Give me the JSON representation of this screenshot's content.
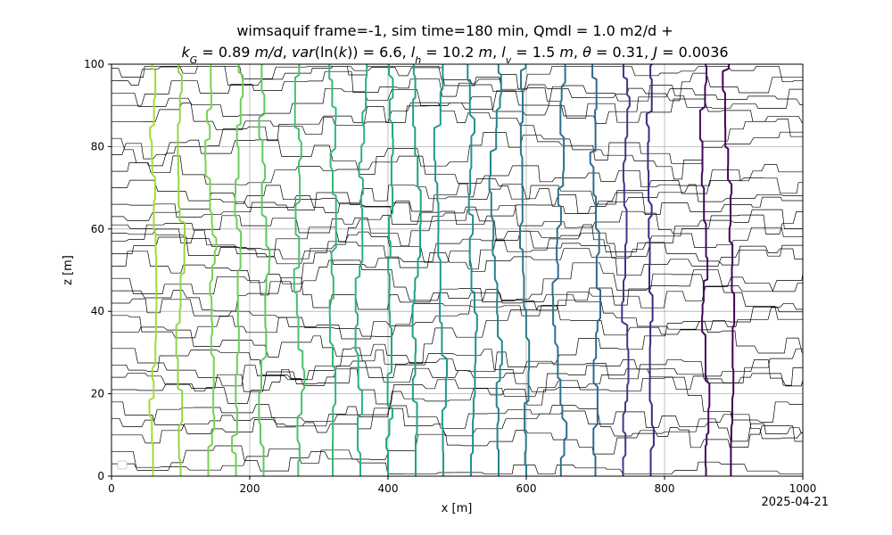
{
  "chart_data": {
    "type": "line",
    "title_line1": "wimsaquif frame=-1, sim time=180 min, Qmdl = 1.0 m2/d +",
    "title_line2": "k_G = 0.89 m/d, var(ln(k)) = 6.6, l_h = 10.2 m, l_v = 1.5 m, θ = 0.31, J = 0.0036",
    "xlabel": "x [m]",
    "ylabel": "z [m]",
    "xlim": [
      0,
      1000
    ],
    "ylim": [
      0,
      100
    ],
    "xticks": [
      0,
      200,
      400,
      600,
      800,
      1000
    ],
    "yticks": [
      0,
      20,
      40,
      60,
      80,
      100
    ],
    "grid": true,
    "date_stamp": "2025-04-21",
    "colormap": "viridis",
    "head_contours_x": [
      896,
      860,
      780,
      740,
      700,
      650,
      600,
      560,
      520,
      480,
      440,
      400,
      360,
      320,
      270,
      220,
      180,
      140,
      100,
      60
    ],
    "head_contour_colors": [
      "#440154",
      "#46085c",
      "#3b2a84",
      "#3a3a8b",
      "#31688e",
      "#2e6f8e",
      "#2a788e",
      "#26828e",
      "#21918c",
      "#1f9a8a",
      "#1fa187",
      "#22a884",
      "#2db27d",
      "#35b779",
      "#4ac16d",
      "#5ec962",
      "#6ece58",
      "#7ad151",
      "#8fd744",
      "#a5db36"
    ],
    "streamlines_z": [
      3,
      6,
      10,
      14,
      18,
      21,
      24,
      27,
      31,
      35,
      39,
      42,
      45,
      48,
      51,
      54,
      57,
      59,
      61,
      63,
      66,
      70,
      74,
      78,
      82,
      86,
      90,
      93,
      96,
      99
    ]
  }
}
